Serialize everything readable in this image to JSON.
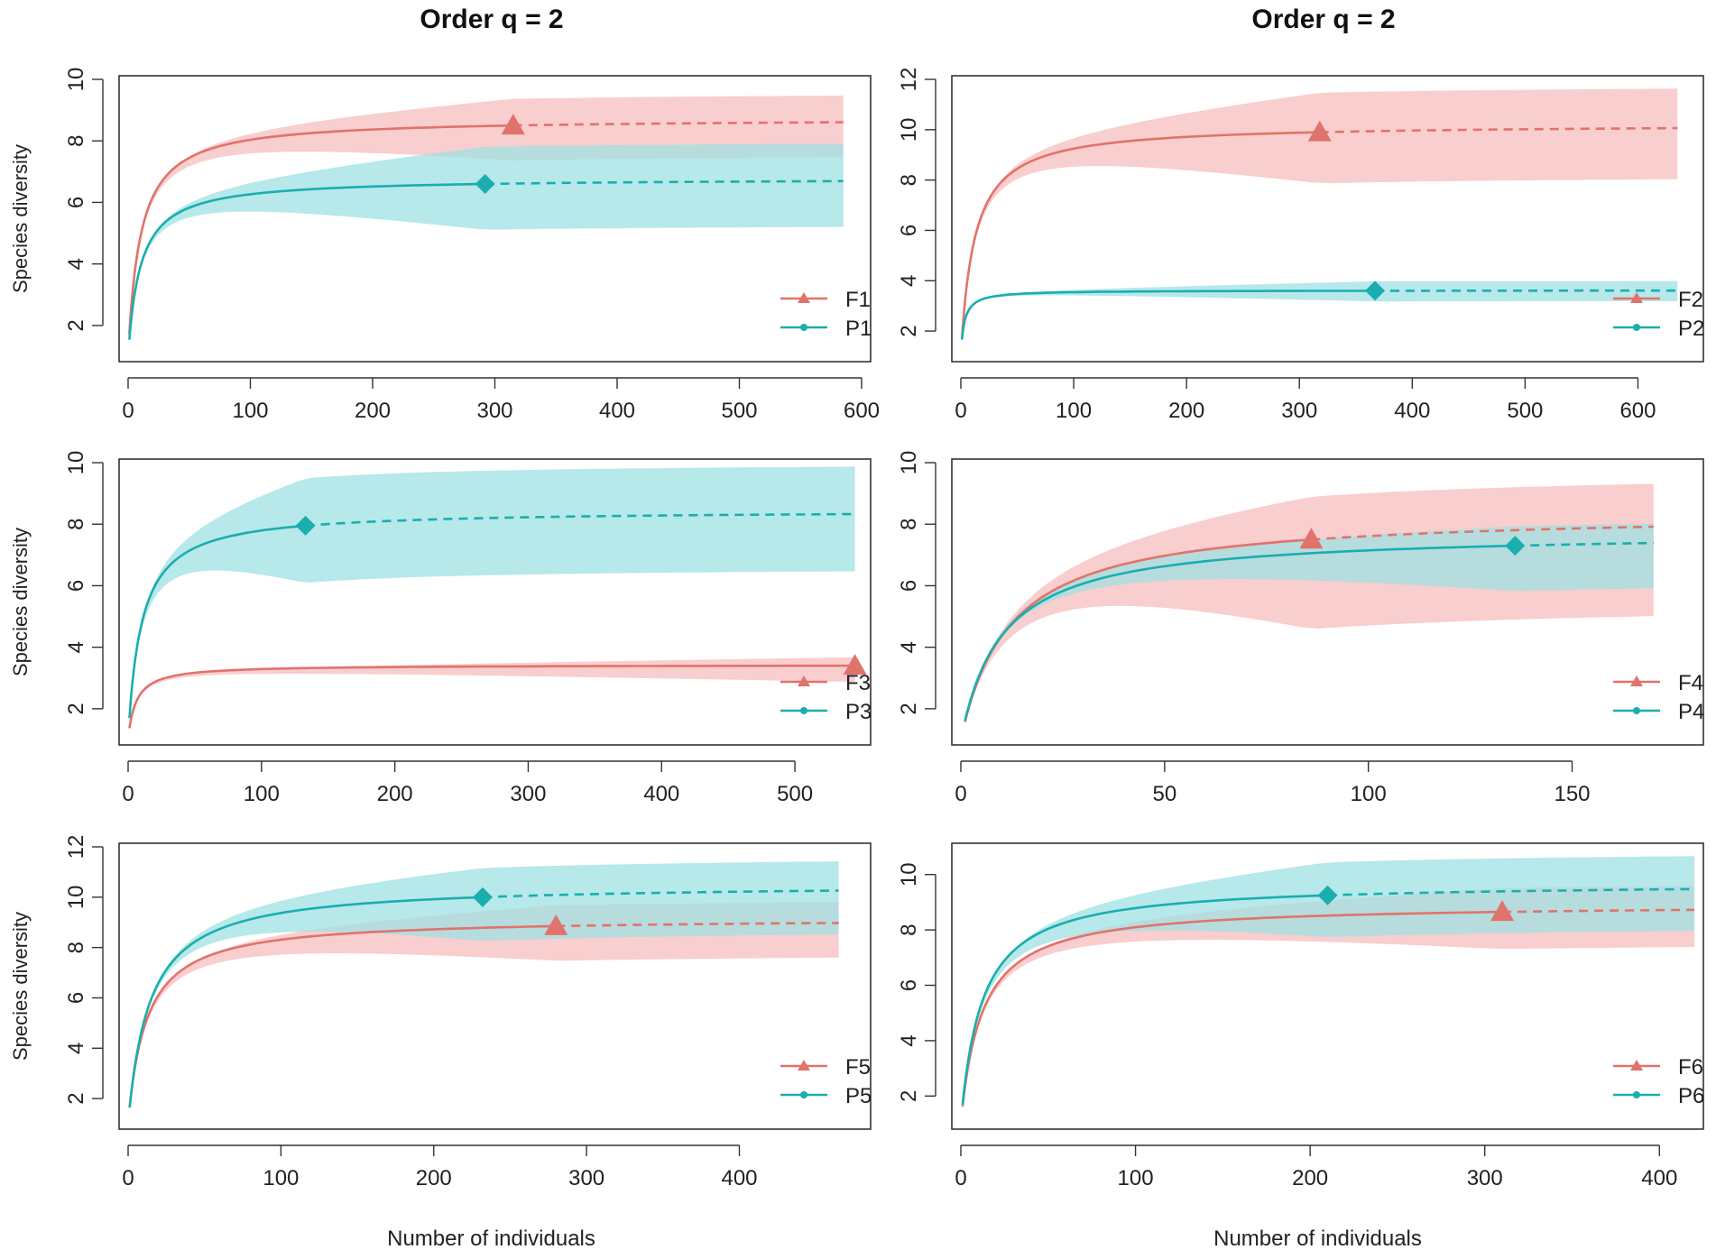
{
  "column_titles": [
    "Order q = 2",
    "Order q = 2"
  ],
  "y_axis_label": "Species diversity",
  "x_axis_label": "Number of individuals",
  "colors": {
    "F": "#e0736b",
    "P": "#1aaeae",
    "F_band": "#f7bdbd",
    "P_band": "#9fe0e3",
    "overlap": "#b7b6b1"
  },
  "chart_data": [
    {
      "type": "line",
      "x_label_shown": false,
      "ylabel": "Species diversity",
      "xlim": [
        0,
        600
      ],
      "ylim": [
        1,
        10
      ],
      "x_ticks": [
        "0",
        "100",
        "200",
        "300",
        "400",
        "500",
        "600"
      ],
      "y_ticks": [
        "2",
        "4",
        "6",
        "8",
        "10"
      ],
      "legend": [
        "F1",
        "P1"
      ],
      "series": [
        {
          "name": "F1",
          "asymptote": 8.6,
          "shape": 10,
          "start": 1,
          "observed_n": 315,
          "observed_s": 8.5,
          "xmax": 585,
          "band_lo": 7.6,
          "band_hi": 9.6,
          "marker": "triangle"
        },
        {
          "name": "P1",
          "asymptote": 6.7,
          "shape": 10,
          "start": 1,
          "observed_n": 292,
          "observed_s": 6.6,
          "xmax": 585,
          "band_lo": 5.3,
          "band_hi": 8.0,
          "marker": "diamond"
        }
      ]
    },
    {
      "type": "line",
      "x_label_shown": false,
      "ylabel": "",
      "xlim": [
        0,
        650
      ],
      "ylim": [
        1,
        12
      ],
      "x_ticks": [
        "0",
        "100",
        "200",
        "300",
        "400",
        "500",
        "600"
      ],
      "y_ticks": [
        "2",
        "4",
        "6",
        "8",
        "10",
        "12"
      ],
      "legend": [
        "F2",
        "P2"
      ],
      "series": [
        {
          "name": "F2",
          "asymptote": 10.1,
          "shape": 12,
          "start": 1,
          "observed_n": 318,
          "observed_s": 9.9,
          "xmax": 635,
          "band_lo": 8.2,
          "band_hi": 11.8,
          "marker": "triangle"
        },
        {
          "name": "P2",
          "asymptote": 3.6,
          "shape": 3,
          "start": 1,
          "observed_n": 367,
          "observed_s": 3.6,
          "xmax": 635,
          "band_lo": 3.2,
          "band_hi": 4.0,
          "marker": "diamond"
        }
      ]
    },
    {
      "type": "line",
      "x_label_shown": false,
      "ylabel": "Species diversity",
      "xlim": [
        0,
        550
      ],
      "ylim": [
        1,
        10
      ],
      "x_ticks": [
        "0",
        "100",
        "200",
        "300",
        "400",
        "500"
      ],
      "y_ticks": [
        "2",
        "4",
        "6",
        "8",
        "10"
      ],
      "legend": [
        "F3",
        "P3"
      ],
      "series": [
        {
          "name": "F3",
          "asymptote": 3.35,
          "shape": 6,
          "start": 1,
          "observed_n": 545,
          "observed_s": 3.4,
          "xmax": 545,
          "band_lo": 2.9,
          "band_hi": 3.7,
          "marker": "triangle"
        },
        {
          "name": "P3",
          "asymptote": 8.3,
          "shape": 10,
          "start": 1,
          "observed_n": 133,
          "observed_s": 7.95,
          "xmax": 545,
          "band_lo": 6.6,
          "band_hi": 10.0,
          "marker": "diamond"
        }
      ]
    },
    {
      "type": "line",
      "x_label_shown": false,
      "ylabel": "",
      "xlim": [
        0,
        180
      ],
      "ylim": [
        1,
        10
      ],
      "x_ticks": [
        "0",
        "50",
        "100",
        "150"
      ],
      "y_ticks": [
        "2",
        "4",
        "6",
        "8",
        "10"
      ],
      "legend": [
        "F4",
        "P4"
      ],
      "series": [
        {
          "name": "F4",
          "asymptote": 8.4,
          "shape": 12,
          "start": 1,
          "observed_n": 86,
          "observed_s": 7.5,
          "xmax": 170,
          "band_lo": 5.5,
          "band_hi": 9.8,
          "marker": "triangle"
        },
        {
          "name": "P4",
          "asymptote": 7.9,
          "shape": 10,
          "start": 1,
          "observed_n": 136,
          "observed_s": 7.3,
          "xmax": 170,
          "band_lo": 6.3,
          "band_hi": 8.4,
          "marker": "diamond"
        }
      ]
    },
    {
      "type": "line",
      "x_label_shown": true,
      "ylabel": "Species diversity",
      "xlim": [
        0,
        480
      ],
      "ylim": [
        1,
        12
      ],
      "x_ticks": [
        "0",
        "100",
        "200",
        "300",
        "400"
      ],
      "y_ticks": [
        "2",
        "4",
        "6",
        "8",
        "10",
        "12"
      ],
      "legend": [
        "F5",
        "P5"
      ],
      "series": [
        {
          "name": "F5",
          "asymptote": 9.0,
          "shape": 12,
          "start": 1,
          "observed_n": 280,
          "observed_s": 8.85,
          "xmax": 465,
          "band_lo": 7.8,
          "band_hi": 10.0,
          "marker": "triangle"
        },
        {
          "name": "P5",
          "asymptote": 10.5,
          "shape": 14,
          "start": 1,
          "observed_n": 232,
          "observed_s": 10.0,
          "xmax": 465,
          "band_lo": 8.8,
          "band_hi": 11.7,
          "marker": "diamond"
        }
      ]
    },
    {
      "type": "line",
      "x_label_shown": true,
      "ylabel": "",
      "xlim": [
        0,
        420
      ],
      "ylim": [
        1,
        11
      ],
      "x_ticks": [
        "0",
        "100",
        "200",
        "300",
        "400"
      ],
      "y_ticks": [
        "2",
        "4",
        "6",
        "8",
        "10"
      ],
      "legend": [
        "F6",
        "P6"
      ],
      "series": [
        {
          "name": "F6",
          "asymptote": 8.8,
          "shape": 12,
          "start": 1,
          "observed_n": 310,
          "observed_s": 8.65,
          "xmax": 420,
          "band_lo": 7.6,
          "band_hi": 9.8,
          "marker": "triangle"
        },
        {
          "name": "P6",
          "asymptote": 9.5,
          "shape": 12,
          "start": 1,
          "observed_n": 210,
          "observed_s": 9.25,
          "xmax": 420,
          "band_lo": 8.2,
          "band_hi": 10.9,
          "marker": "diamond"
        }
      ]
    }
  ]
}
